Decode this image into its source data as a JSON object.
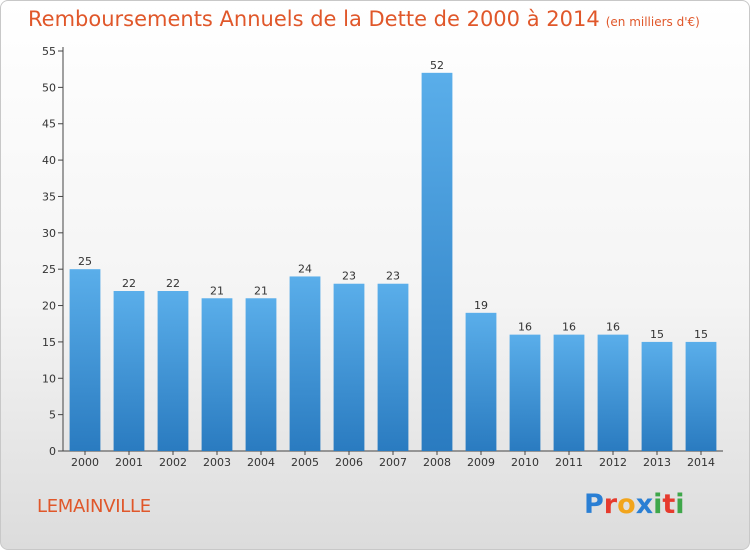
{
  "title": "Remboursements Annuels de la Dette de 2000 à 2014",
  "subtitle": "(en milliers d'€)",
  "commune": "LEMAINVILLE",
  "logo": {
    "letters": [
      "P",
      "r",
      "o",
      "x",
      "i",
      "t",
      "i"
    ],
    "colors": [
      "#2a7fd4",
      "#e63b2e",
      "#f2a51c",
      "#2a7fd4",
      "#3fa74a",
      "#e63b2e",
      "#3fa74a"
    ]
  },
  "colors": {
    "bar_light": "#5aaeea",
    "bar_dark": "#2a7bc0",
    "title": "#e0572a"
  },
  "chart_data": {
    "type": "bar",
    "title": "Remboursements Annuels de la Dette de 2000 à 2014",
    "xlabel": "",
    "ylabel": "",
    "ylim": [
      0,
      55
    ],
    "yticks": [
      0,
      5,
      10,
      15,
      20,
      25,
      30,
      35,
      40,
      45,
      50,
      55
    ],
    "grid": false,
    "categories": [
      "2000",
      "2001",
      "2002",
      "2003",
      "2004",
      "2005",
      "2006",
      "2007",
      "2008",
      "2009",
      "2010",
      "2011",
      "2012",
      "2013",
      "2014"
    ],
    "values": [
      25,
      22,
      22,
      21,
      21,
      24,
      23,
      23,
      52,
      19,
      16,
      16,
      16,
      15,
      15
    ]
  }
}
